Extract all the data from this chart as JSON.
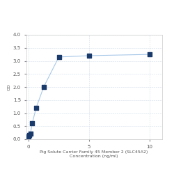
{
  "x_values": [
    0,
    0.078,
    0.156,
    0.313,
    0.625,
    1.25,
    2.5,
    5,
    10
  ],
  "y_values": [
    0.12,
    0.15,
    0.22,
    0.62,
    1.2,
    2.0,
    3.15,
    3.2,
    3.25
  ],
  "x_label_line1": "Pig Solute Carrier Family 45 Member 2 (SLC45A2)",
  "x_label_line2": "Concentration (ng/ml)",
  "y_label": "OD",
  "y_lim": [
    0,
    4
  ],
  "x_lim": [
    -0.2,
    11
  ],
  "y_ticks": [
    0,
    0.5,
    1.0,
    1.5,
    2.0,
    2.5,
    3.0,
    3.5,
    4.0
  ],
  "x_ticks": [
    0,
    5,
    10
  ],
  "line_color": "#a8c8e8",
  "marker_color": "#1a3a6b",
  "marker_size": 16,
  "line_width": 0.8,
  "grid_color": "#d0dce8",
  "fig_bg_color": "#ffffff",
  "plot_bg_color": "#ffffff",
  "label_fontsize": 4.5,
  "tick_fontsize": 5,
  "tick_color": "#888888"
}
